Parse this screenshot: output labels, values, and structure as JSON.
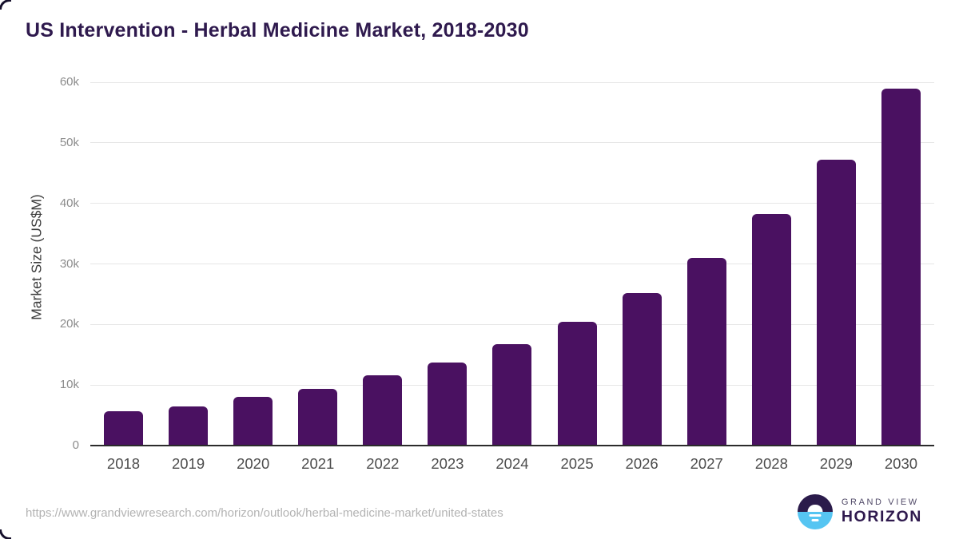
{
  "header": {
    "title": "US Intervention - Herbal Medicine Market, 2018-2030"
  },
  "chart_data": {
    "type": "bar",
    "title": "US Intervention - Herbal Medicine Market, 2018-2030",
    "categories": [
      "2018",
      "2019",
      "2020",
      "2021",
      "2022",
      "2023",
      "2024",
      "2025",
      "2026",
      "2027",
      "2028",
      "2029",
      "2030"
    ],
    "values": [
      5700,
      6500,
      8000,
      9400,
      11600,
      13700,
      16700,
      20400,
      25200,
      31000,
      38200,
      47200,
      58900
    ],
    "units": "US$M",
    "xlabel": "",
    "ylabel": "Market Size (US$M)",
    "ylim": [
      0,
      60000
    ],
    "yticks": [
      {
        "value": 0,
        "label": "0"
      },
      {
        "value": 10000,
        "label": "10k"
      },
      {
        "value": 20000,
        "label": "20k"
      },
      {
        "value": 30000,
        "label": "30k"
      },
      {
        "value": 40000,
        "label": "40k"
      },
      {
        "value": 50000,
        "label": "50k"
      },
      {
        "value": 60000,
        "label": "60k"
      }
    ],
    "grid": "horizontal",
    "legend": "none",
    "bar_color": "#4a1161"
  },
  "footer": {
    "source_url": "https://www.grandviewresearch.com/horizon/outlook/herbal-medicine-market/united-states",
    "logo": {
      "top_text": "GRAND VIEW",
      "bottom_text": "HORIZON"
    }
  },
  "colors": {
    "title": "#2f1a4e",
    "bar": "#4a1161",
    "gridline": "#e6e6e6",
    "axis_line": "#2b2b2b",
    "x_tick": "#4d4d4d",
    "y_tick": "#8c8c8c",
    "source_url": "#b3b3b3",
    "logo_dark": "#2b1b4b",
    "logo_blue": "#56c5f2"
  }
}
